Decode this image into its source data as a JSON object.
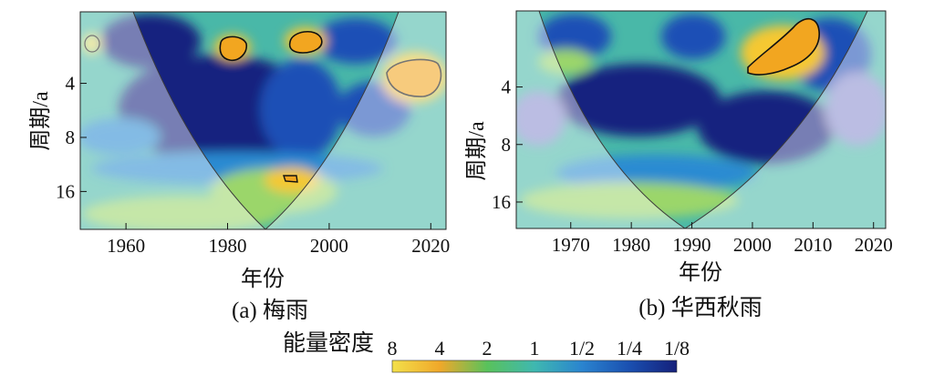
{
  "chart_data": [
    {
      "type": "heatmap",
      "panel": "(a) 梅雨",
      "caption": "(a) 梅雨",
      "xlabel": "年份",
      "ylabel": "周期/a",
      "xlim": [
        1951,
        2023
      ],
      "ylim_period": [
        1.6,
        26
      ],
      "xticks": [
        1960,
        1980,
        2000,
        2020
      ],
      "yticks": [
        4,
        8,
        16
      ],
      "cone_of_influence_min": 1987,
      "significant_regions": [
        {
          "year": 1980,
          "period": 2.4,
          "power": 8
        },
        {
          "year": 1994,
          "period": 2.4,
          "power": 8
        },
        {
          "year": 1992,
          "period": 14,
          "power": 4
        },
        {
          "year": 2015,
          "period": 4.8,
          "power": 8
        }
      ],
      "background_regions": [
        {
          "year": 1985,
          "period": 6.5,
          "power": 0.125
        },
        {
          "year": 1965,
          "period": 4,
          "power": 0.125
        },
        {
          "year": 1995,
          "period": 10,
          "power": 0.25
        },
        {
          "year": 1990,
          "period": 20,
          "power": 2
        }
      ]
    },
    {
      "type": "heatmap",
      "panel": "(b) 华西秋雨",
      "caption": "(b) 华西秋雨",
      "xlabel": "年份",
      "ylabel": "周期/a",
      "xlim": [
        1961,
        2022
      ],
      "ylim_period": [
        1.6,
        22
      ],
      "xticks": [
        1970,
        1980,
        1990,
        2000,
        2010,
        2020
      ],
      "yticks": [
        4,
        8,
        16
      ],
      "cone_of_influence_min": 1992,
      "significant_regions": [
        {
          "year": 2005,
          "period": 2.8,
          "power": 8
        }
      ],
      "background_regions": [
        {
          "year": 1985,
          "period": 5,
          "power": 0.125
        },
        {
          "year": 2000,
          "period": 9,
          "power": 0.125
        },
        {
          "year": 1975,
          "period": 14,
          "power": 1
        },
        {
          "year": 1990,
          "period": 18,
          "power": 2
        }
      ]
    }
  ],
  "colorbar": {
    "label": "能量密度",
    "ticks": [
      "8",
      "4",
      "2",
      "1",
      "1/2",
      "1/4",
      "1/8"
    ],
    "colors": [
      "#f3e04a",
      "#f0a82a",
      "#59c25b",
      "#3fb8b0",
      "#2a84cf",
      "#1a4fb0",
      "#15207a"
    ]
  },
  "colors": {
    "very_high": "#f2a620",
    "high": "#f5c832",
    "medium_high": "#9bd66b",
    "medium": "#36b9a8",
    "medium_low": "#2a8bd2",
    "low": "#1b4fb6",
    "very_low": "#16227f",
    "outside_cone": "#ffffff"
  }
}
